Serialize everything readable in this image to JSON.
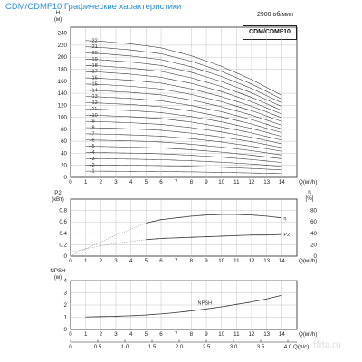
{
  "header": {
    "title": "CDM/CDMF10 Графические характеристики",
    "speed": "2900 об/мин",
    "model": "CDM/CDMF10"
  },
  "watermark": "tfita.ru",
  "colors": {
    "title": "#2e8fd0",
    "curve": "#333333",
    "grid": "#b8b8b8",
    "dashed": "#9a9a9a"
  },
  "chart_data": [
    {
      "type": "line",
      "name": "head",
      "ylabel": "H",
      "yunit": "(м)",
      "xlabel": "Q(м³/h)",
      "xlim": [
        0,
        15
      ],
      "ylim": [
        0,
        250
      ],
      "x_ticks": [
        "0",
        "1",
        "2",
        "3",
        "4",
        "5",
        "6",
        "7",
        "8",
        "9",
        "10",
        "11",
        "12",
        "13",
        "14"
      ],
      "y_ticks": [
        "0",
        "20",
        "40",
        "60",
        "80",
        "100",
        "120",
        "140",
        "160",
        "180",
        "200",
        "220",
        "240"
      ],
      "grid": true,
      "stage_labels": [
        "-1",
        "-2",
        "-3",
        "-4",
        "-5",
        "-6",
        "-7",
        "-8",
        "-9",
        "-10",
        "-11",
        "-12",
        "-13",
        "-14",
        "-15",
        "-16",
        "-17",
        "-18",
        "-19",
        "-20",
        "-21",
        "-22"
      ],
      "stage_count": [
        1,
        2,
        3,
        4,
        5,
        6,
        7,
        8,
        9,
        10,
        11,
        12,
        13,
        14,
        15,
        16,
        17,
        18,
        19,
        20,
        21,
        22
      ],
      "head_per_stage": {
        "x": [
          0,
          2,
          4,
          6,
          8,
          10,
          12,
          14
        ],
        "y": [
          10.4,
          10.3,
          10.1,
          9.8,
          9.2,
          8.4,
          7.4,
          6.2
        ]
      },
      "curve_start_x": 1
    },
    {
      "type": "line",
      "name": "power-efficiency",
      "ylabel_left": "P2",
      "yunit_left": "(кВт)",
      "ylabel_right": "η",
      "yunit_right": "[%]",
      "xlabel": "Q(м³/h)",
      "xlim": [
        0,
        15
      ],
      "ylim_left": [
        0,
        1.0
      ],
      "ylim_right": [
        0,
        100
      ],
      "x_ticks": [
        "0",
        "1",
        "2",
        "3",
        "4",
        "5",
        "6",
        "7",
        "8",
        "9",
        "10",
        "11",
        "12",
        "13",
        "14"
      ],
      "y_ticks_left": [
        "0",
        "0.2",
        "0.4",
        "0.6",
        "0.8"
      ],
      "y_ticks_right": [
        "0",
        "20",
        "40",
        "60",
        "80"
      ],
      "grid": true,
      "series": [
        {
          "name": "η",
          "axis": "right",
          "x": [
            0,
            1,
            2,
            3,
            4,
            5,
            6,
            7,
            8,
            9,
            10,
            11,
            12,
            13,
            14
          ],
          "y": [
            0,
            13,
            25,
            37,
            47,
            58,
            64,
            67,
            70,
            72,
            73,
            73,
            72,
            70,
            67
          ],
          "dashed_until": 5
        },
        {
          "name": "P2",
          "axis": "left",
          "x": [
            0,
            1,
            2,
            3,
            4,
            5,
            6,
            7,
            8,
            9,
            10,
            11,
            12,
            13,
            14
          ],
          "y": [
            0.07,
            0.13,
            0.18,
            0.22,
            0.26,
            0.29,
            0.31,
            0.32,
            0.33,
            0.34,
            0.35,
            0.36,
            0.37,
            0.37,
            0.38
          ],
          "dashed_until": 5
        }
      ]
    },
    {
      "type": "line",
      "name": "npsh",
      "ylabel": "NPSH",
      "yunit": "(м)",
      "xlabel": "Q(м³/h)",
      "xlabel2": "Q(л/с)",
      "xlim": [
        0,
        15
      ],
      "ylim": [
        0,
        4
      ],
      "x_ticks": [
        "0",
        "1",
        "2",
        "3",
        "4",
        "5",
        "6",
        "7",
        "8",
        "9",
        "10",
        "11",
        "12",
        "13",
        "14"
      ],
      "x2_ticks": [
        "0",
        "0.5",
        "1.0",
        "1.5",
        "2.0",
        "2.5",
        "3.0",
        "3.5",
        "4.0"
      ],
      "y_ticks": [
        "0",
        "1",
        "2",
        "3",
        "4"
      ],
      "grid": true,
      "series": [
        {
          "name": "NPSH",
          "x": [
            1,
            2,
            3,
            4,
            5,
            6,
            7,
            8,
            9,
            10,
            11,
            12,
            13,
            14
          ],
          "y": [
            1.02,
            1.05,
            1.08,
            1.12,
            1.18,
            1.27,
            1.38,
            1.52,
            1.68,
            1.85,
            2.05,
            2.25,
            2.5,
            2.8
          ]
        }
      ]
    }
  ]
}
